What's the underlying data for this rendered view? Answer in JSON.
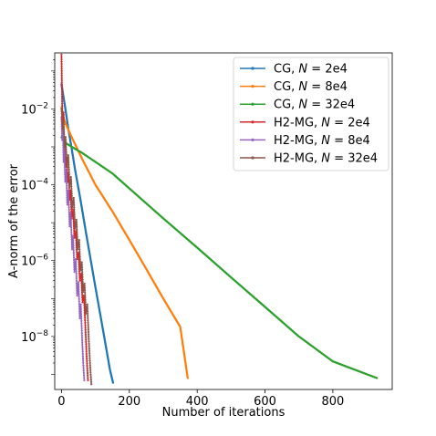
{
  "chart_data": {
    "type": "line",
    "title": "",
    "xlabel": "Number of iterations",
    "ylabel": "A-norm of the error",
    "xlim": [
      -20,
      975
    ],
    "ylim": [
      4e-10,
      0.3
    ],
    "x_scale": "linear",
    "y_scale": "log",
    "grid": false,
    "legend_position": "top-right",
    "x_ticks": [
      {
        "value": 0,
        "label": "0"
      },
      {
        "value": 200,
        "label": "200"
      },
      {
        "value": 400,
        "label": "400"
      },
      {
        "value": 600,
        "label": "600"
      },
      {
        "value": 800,
        "label": "800"
      }
    ],
    "y_ticks": [
      {
        "value": 0.01,
        "base": "10",
        "exp": "−2"
      },
      {
        "value": 0.0001,
        "base": "10",
        "exp": "−4"
      },
      {
        "value": 1e-06,
        "base": "10",
        "exp": "−6"
      },
      {
        "value": 1e-08,
        "base": "10",
        "exp": "−8"
      }
    ],
    "series": [
      {
        "name_pre": "CG, ",
        "name_var": "N",
        "name_post": " = 2e4",
        "color": "#1f77b4",
        "points": [
          [
            0,
            0.045
          ],
          [
            10,
            0.012
          ],
          [
            20,
            0.003
          ],
          [
            30,
            0.0009
          ],
          [
            40,
            0.00025
          ],
          [
            55,
            4.5e-05
          ],
          [
            70,
            7e-06
          ],
          [
            85,
            1.2e-06
          ],
          [
            100,
            2e-07
          ],
          [
            115,
            3.5e-08
          ],
          [
            130,
            6e-09
          ],
          [
            143,
            1.3e-09
          ],
          [
            152,
            6e-10
          ]
        ],
        "dense": true
      },
      {
        "name_pre": "CG, ",
        "name_var": "N",
        "name_post": " = 8e4",
        "color": "#ff7f0e",
        "points": [
          [
            0,
            0.011
          ],
          [
            3,
            0.007
          ],
          [
            10,
            0.0045
          ],
          [
            30,
            0.0018
          ],
          [
            60,
            0.0005
          ],
          [
            100,
            0.0001
          ],
          [
            150,
            2e-05
          ],
          [
            200,
            3.5e-06
          ],
          [
            250,
            6e-07
          ],
          [
            300,
            1e-07
          ],
          [
            350,
            1.8e-08
          ],
          [
            372,
            8e-10
          ]
        ],
        "dense": true
      },
      {
        "name_pre": "CG, ",
        "name_var": "N",
        "name_post": " = 32e4",
        "color": "#2ca02c",
        "points": [
          [
            0,
            0.0018
          ],
          [
            10,
            0.0013
          ],
          [
            30,
            0.001
          ],
          [
            60,
            0.0007
          ],
          [
            100,
            0.0004
          ],
          [
            150,
            0.0002
          ],
          [
            200,
            8e-05
          ],
          [
            300,
            1.3e-05
          ],
          [
            400,
            2.2e-06
          ],
          [
            500,
            3.6e-07
          ],
          [
            600,
            6e-08
          ],
          [
            700,
            1e-08
          ],
          [
            800,
            2.2e-09
          ],
          [
            930,
            8e-10
          ]
        ],
        "dense": true
      },
      {
        "name_pre": "H2-MG, ",
        "name_var": "N",
        "name_post": " = 2e4",
        "color": "#d62728",
        "points": [
          [
            0,
            0.27
          ],
          [
            2,
            0.012
          ],
          [
            4,
            0.002
          ],
          [
            6,
            0.008
          ],
          [
            8,
            0.0007
          ],
          [
            10,
            0.0018
          ],
          [
            12,
            0.0003
          ],
          [
            15,
            0.0005
          ],
          [
            18,
            0.00012
          ],
          [
            21,
            0.0002
          ],
          [
            24,
            4e-05
          ],
          [
            27,
            7e-05
          ],
          [
            30,
            1.3e-05
          ],
          [
            34,
            2.2e-05
          ],
          [
            38,
            4e-06
          ],
          [
            42,
            6e-06
          ],
          [
            46,
            1.1e-06
          ],
          [
            50,
            1.6e-06
          ],
          [
            54,
            3e-07
          ],
          [
            58,
            4.5e-07
          ],
          [
            62,
            8e-08
          ],
          [
            66,
            1.2e-07
          ],
          [
            70,
            2e-08
          ],
          [
            74,
            3e-09
          ],
          [
            78,
            7e-10
          ]
        ],
        "dense": false
      },
      {
        "name_pre": "H2-MG, ",
        "name_var": "N",
        "name_post": " = 8e4",
        "color": "#9467bd",
        "points": [
          [
            0,
            0.006
          ],
          [
            2,
            0.0015
          ],
          [
            4,
            0.004
          ],
          [
            6,
            0.0004
          ],
          [
            8,
            0.0009
          ],
          [
            11,
            0.00012
          ],
          [
            14,
            0.00025
          ],
          [
            17,
            3e-05
          ],
          [
            20,
            7e-05
          ],
          [
            24,
            8e-06
          ],
          [
            27,
            1.8e-05
          ],
          [
            31,
            2e-06
          ],
          [
            34,
            4.5e-06
          ],
          [
            38,
            5e-07
          ],
          [
            42,
            1.1e-06
          ],
          [
            46,
            1.2e-07
          ],
          [
            50,
            2.7e-07
          ],
          [
            54,
            3e-08
          ],
          [
            57,
            7e-08
          ],
          [
            61,
            8e-09
          ],
          [
            64,
            2e-09
          ],
          [
            67,
            7e-10
          ]
        ],
        "dense": false
      },
      {
        "name_pre": "H2-MG, ",
        "name_var": "N",
        "name_post": " = 32e4",
        "color": "#8c564b",
        "points": [
          [
            0,
            0.01
          ],
          [
            3,
            0.003
          ],
          [
            6,
            0.0045
          ],
          [
            9,
            0.001
          ],
          [
            12,
            0.0018
          ],
          [
            16,
            0.0003
          ],
          [
            20,
            0.0006
          ],
          [
            24,
            9e-05
          ],
          [
            28,
            0.00016
          ],
          [
            32,
            2.5e-05
          ],
          [
            36,
            4.5e-05
          ],
          [
            40,
            7e-06
          ],
          [
            44,
            1.2e-05
          ],
          [
            48,
            2e-06
          ],
          [
            52,
            3.5e-06
          ],
          [
            56,
            5.5e-07
          ],
          [
            60,
            9e-07
          ],
          [
            64,
            1.5e-07
          ],
          [
            68,
            2.5e-07
          ],
          [
            72,
            4e-08
          ],
          [
            76,
            7e-08
          ],
          [
            80,
            1e-08
          ],
          [
            84,
            2e-09
          ],
          [
            88,
            5.5e-10
          ]
        ],
        "dense": false
      }
    ]
  }
}
